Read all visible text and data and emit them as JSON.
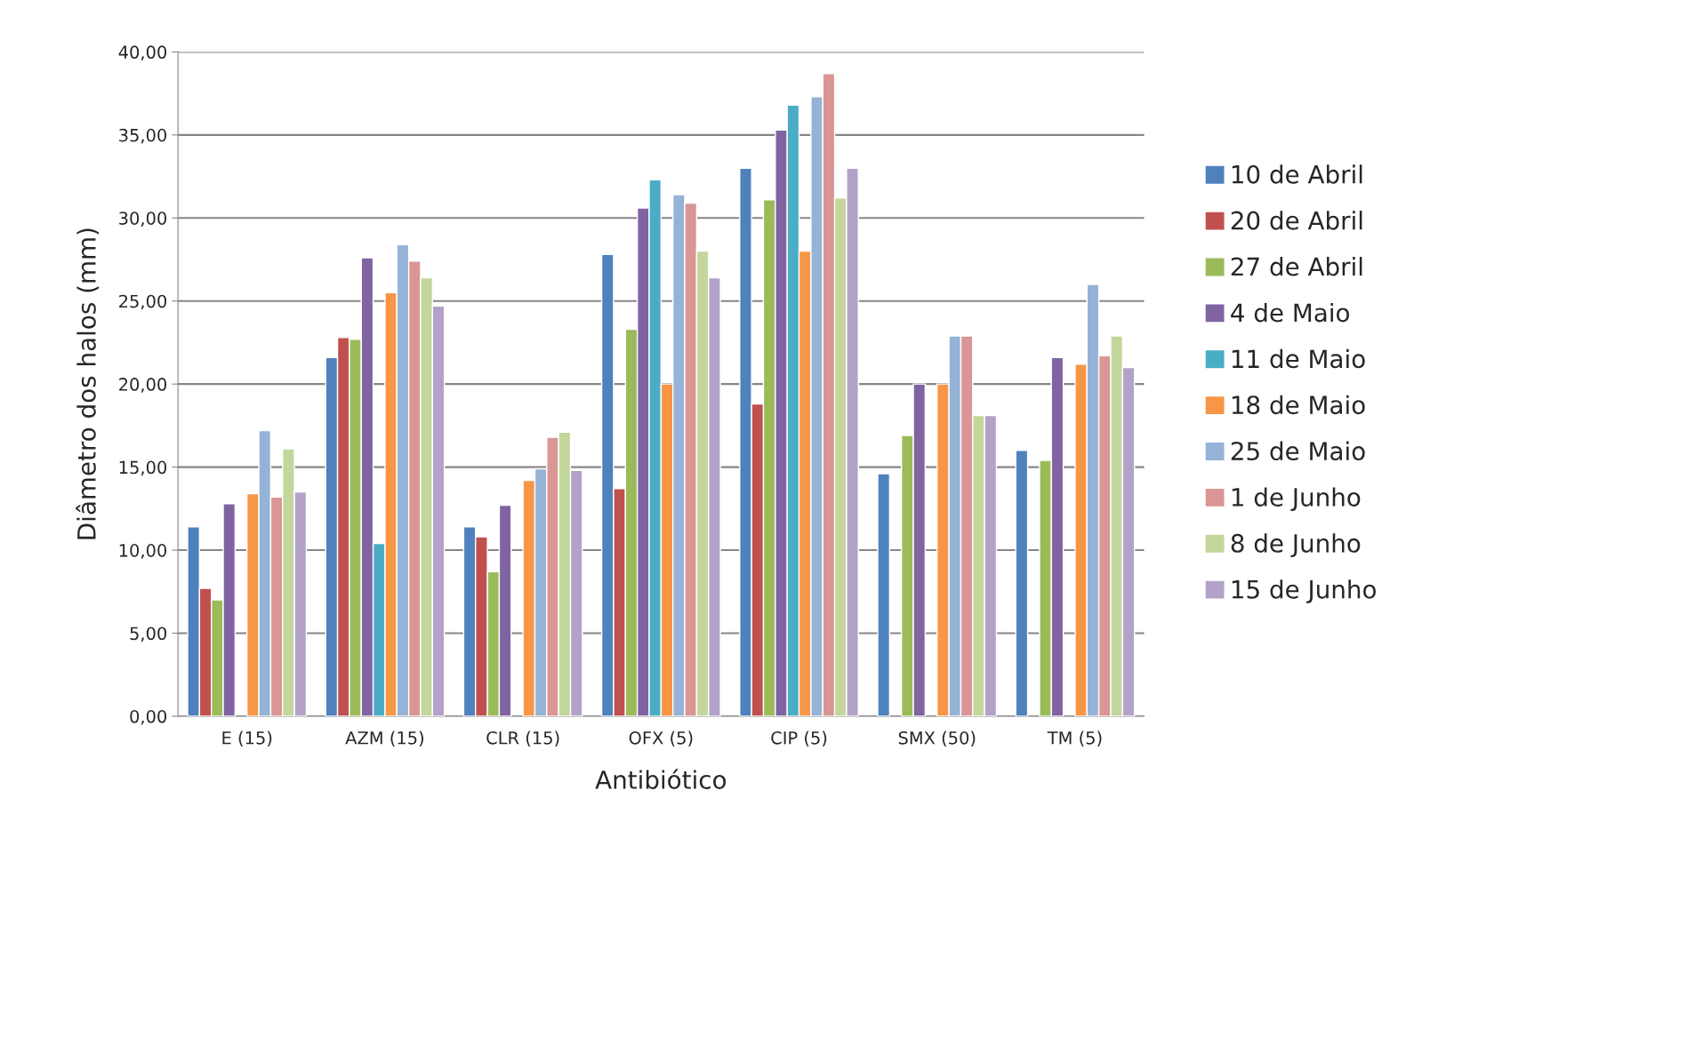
{
  "chart_data": {
    "type": "bar",
    "xlabel": "Antibiótico",
    "ylabel": "Diâmetro dos halos (mm)",
    "categories": [
      "E (15)",
      "AZM (15)",
      "CLR (15)",
      "OFX (5)",
      "CIP (5)",
      "SMX (50)",
      "TM (5)"
    ],
    "series": [
      {
        "name": "10 de Abril",
        "color": "#4f81bd",
        "values": [
          11.4,
          21.6,
          11.4,
          27.8,
          33.0,
          14.6,
          16.0
        ]
      },
      {
        "name": "20 de Abril",
        "color": "#c0504d",
        "values": [
          7.7,
          22.8,
          10.8,
          13.7,
          18.8,
          null,
          null
        ]
      },
      {
        "name": "27 de Abril",
        "color": "#9bbb59",
        "values": [
          7.0,
          22.7,
          8.7,
          23.3,
          31.1,
          16.9,
          15.4
        ]
      },
      {
        "name": "4 de Maio",
        "color": "#8064a2",
        "values": [
          12.8,
          27.6,
          12.7,
          30.6,
          35.3,
          20.0,
          21.6
        ]
      },
      {
        "name": "11 de Maio",
        "color": "#4bacc6",
        "values": [
          null,
          10.4,
          null,
          32.3,
          36.8,
          null,
          null
        ]
      },
      {
        "name": "18 de Maio",
        "color": "#f79646",
        "values": [
          13.4,
          25.5,
          14.2,
          20.0,
          28.0,
          20.0,
          21.2
        ]
      },
      {
        "name": "25 de Maio",
        "color": "#95b3d7",
        "values": [
          17.2,
          28.4,
          14.9,
          31.4,
          37.3,
          22.9,
          26.0
        ]
      },
      {
        "name": "1 de Junho",
        "color": "#d99694",
        "values": [
          13.2,
          27.4,
          16.8,
          30.9,
          38.7,
          22.9,
          21.7
        ]
      },
      {
        "name": "8 de Junho",
        "color": "#c3d69b",
        "values": [
          16.1,
          26.4,
          17.1,
          28.0,
          31.2,
          18.1,
          22.9
        ]
      },
      {
        "name": "15 de Junho",
        "color": "#b3a2c7",
        "values": [
          13.5,
          24.7,
          14.8,
          26.4,
          33.0,
          18.1,
          21.0
        ]
      }
    ],
    "ylim": [
      0,
      40
    ],
    "yticks": [
      {
        "value": 0,
        "label": "0,00"
      },
      {
        "value": 5,
        "label": "5,00"
      },
      {
        "value": 10,
        "label": "10,00"
      },
      {
        "value": 15,
        "label": "15,00"
      },
      {
        "value": 20,
        "label": "20,00"
      },
      {
        "value": 25,
        "label": "25,00"
      },
      {
        "value": 30,
        "label": "30,00"
      },
      {
        "value": 35,
        "label": "35,00"
      },
      {
        "value": 40,
        "label": "40,00"
      }
    ],
    "grid": "y",
    "legend": "right"
  }
}
